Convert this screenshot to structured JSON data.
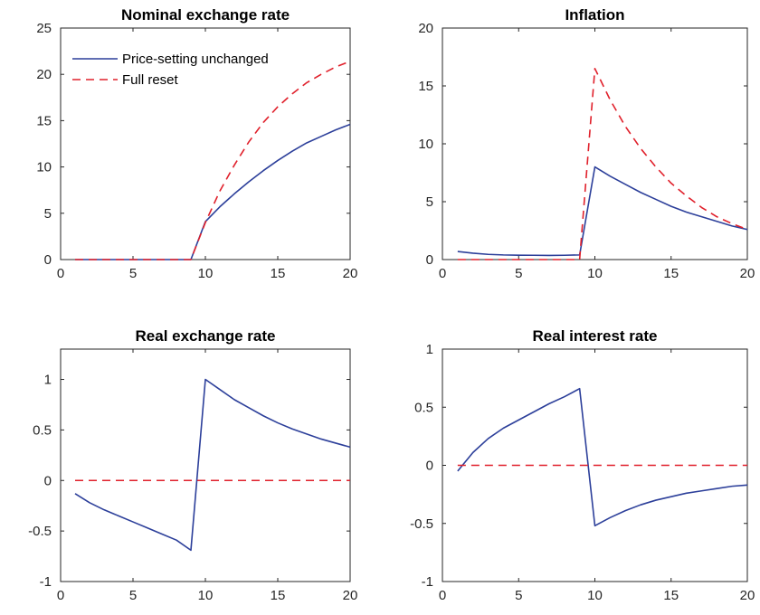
{
  "colors": {
    "price_setting_unchanged": "#2c3f9a",
    "full_reset": "#e0202b",
    "axis": "#262626",
    "background": "#ffffff"
  },
  "legend": {
    "placement": "top-left",
    "entries": [
      {
        "label": "Price-setting unchanged",
        "style": "solid",
        "color": "#2c3f9a"
      },
      {
        "label": "Full reset",
        "style": "dashed",
        "color": "#e0202b"
      }
    ]
  },
  "chart_data": [
    {
      "type": "line",
      "title": "Nominal exchange rate",
      "xlim": [
        0,
        20
      ],
      "ylim": [
        0,
        25
      ],
      "xticks": [
        0,
        5,
        10,
        15,
        20
      ],
      "yticks": [
        0,
        5,
        10,
        15,
        20,
        25
      ],
      "grid": false,
      "legend": true,
      "x": [
        1,
        2,
        3,
        4,
        5,
        6,
        7,
        8,
        9,
        10,
        11,
        12,
        13,
        14,
        15,
        16,
        17,
        18,
        19,
        20
      ],
      "series": [
        {
          "name": "Price-setting unchanged",
          "style": "solid",
          "color": "#2c3f9a",
          "values": [
            0,
            0,
            0,
            0,
            0,
            0,
            0,
            0,
            0,
            4.1,
            5.7,
            7.1,
            8.4,
            9.6,
            10.7,
            11.7,
            12.6,
            13.3,
            14.0,
            14.6
          ]
        },
        {
          "name": "Full reset",
          "style": "dashed",
          "color": "#e0202b",
          "values": [
            0,
            0,
            0,
            0,
            0,
            0,
            0,
            0,
            0,
            4.0,
            7.4,
            10.2,
            12.7,
            14.8,
            16.5,
            17.9,
            19.1,
            20.0,
            20.8,
            21.4
          ]
        }
      ]
    },
    {
      "type": "line",
      "title": "Inflation",
      "xlim": [
        0,
        20
      ],
      "ylim": [
        0,
        20
      ],
      "xticks": [
        0,
        5,
        10,
        15,
        20
      ],
      "yticks": [
        0,
        5,
        10,
        15,
        20
      ],
      "grid": false,
      "legend": false,
      "x": [
        1,
        2,
        3,
        4,
        5,
        6,
        7,
        8,
        9,
        10,
        11,
        12,
        13,
        14,
        15,
        16,
        17,
        18,
        19,
        20
      ],
      "series": [
        {
          "name": "Price-setting unchanged",
          "style": "solid",
          "color": "#2c3f9a",
          "values": [
            0.7,
            0.55,
            0.45,
            0.4,
            0.38,
            0.37,
            0.36,
            0.37,
            0.4,
            8.0,
            7.2,
            6.5,
            5.8,
            5.2,
            4.6,
            4.1,
            3.7,
            3.3,
            2.9,
            2.6
          ]
        },
        {
          "name": "Full reset",
          "style": "dashed",
          "color": "#e0202b",
          "values": [
            0,
            0,
            0,
            0,
            0,
            0,
            0,
            0,
            0,
            16.5,
            13.8,
            11.5,
            9.6,
            8.0,
            6.6,
            5.5,
            4.5,
            3.7,
            3.1,
            2.6
          ]
        }
      ]
    },
    {
      "type": "line",
      "title": "Real exchange rate",
      "xlim": [
        0,
        20
      ],
      "ylim": [
        -1,
        1.3
      ],
      "xticks": [
        0,
        5,
        10,
        15,
        20
      ],
      "yticks": [
        -1,
        -0.5,
        0,
        0.5,
        1
      ],
      "ytick_labels": [
        "-1",
        "-0.5",
        "0",
        "0.5",
        "1"
      ],
      "grid": false,
      "legend": false,
      "x": [
        1,
        2,
        3,
        4,
        5,
        6,
        7,
        8,
        9,
        10,
        11,
        12,
        13,
        14,
        15,
        16,
        17,
        18,
        19,
        20
      ],
      "series": [
        {
          "name": "Price-setting unchanged",
          "style": "solid",
          "color": "#2c3f9a",
          "values": [
            -0.13,
            -0.22,
            -0.29,
            -0.35,
            -0.41,
            -0.47,
            -0.53,
            -0.59,
            -0.69,
            1.0,
            0.9,
            0.8,
            0.72,
            0.64,
            0.57,
            0.51,
            0.46,
            0.41,
            0.37,
            0.33
          ]
        },
        {
          "name": "Full reset",
          "style": "dashed",
          "color": "#e0202b",
          "values": [
            0,
            0,
            0,
            0,
            0,
            0,
            0,
            0,
            0,
            0,
            0,
            0,
            0,
            0,
            0,
            0,
            0,
            0,
            0,
            0
          ]
        }
      ]
    },
    {
      "type": "line",
      "title": "Real interest rate",
      "xlim": [
        0,
        20
      ],
      "ylim": [
        -1,
        1
      ],
      "xticks": [
        0,
        5,
        10,
        15,
        20
      ],
      "yticks": [
        -1,
        -0.5,
        0,
        0.5,
        1
      ],
      "ytick_labels": [
        "-1",
        "-0.5",
        "0",
        "0.5",
        "1"
      ],
      "grid": false,
      "legend": false,
      "x": [
        1,
        2,
        3,
        4,
        5,
        6,
        7,
        8,
        9,
        10,
        11,
        12,
        13,
        14,
        15,
        16,
        17,
        18,
        19,
        20
      ],
      "series": [
        {
          "name": "Price-setting unchanged",
          "style": "solid",
          "color": "#2c3f9a",
          "values": [
            -0.05,
            0.11,
            0.23,
            0.32,
            0.39,
            0.46,
            0.53,
            0.59,
            0.66,
            -0.52,
            -0.45,
            -0.39,
            -0.34,
            -0.3,
            -0.27,
            -0.24,
            -0.22,
            -0.2,
            -0.18,
            -0.17
          ]
        },
        {
          "name": "Full reset",
          "style": "dashed",
          "color": "#e0202b",
          "values": [
            0,
            0,
            0,
            0,
            0,
            0,
            0,
            0,
            0,
            0,
            0,
            0,
            0,
            0,
            0,
            0,
            0,
            0,
            0,
            0
          ]
        }
      ]
    }
  ]
}
